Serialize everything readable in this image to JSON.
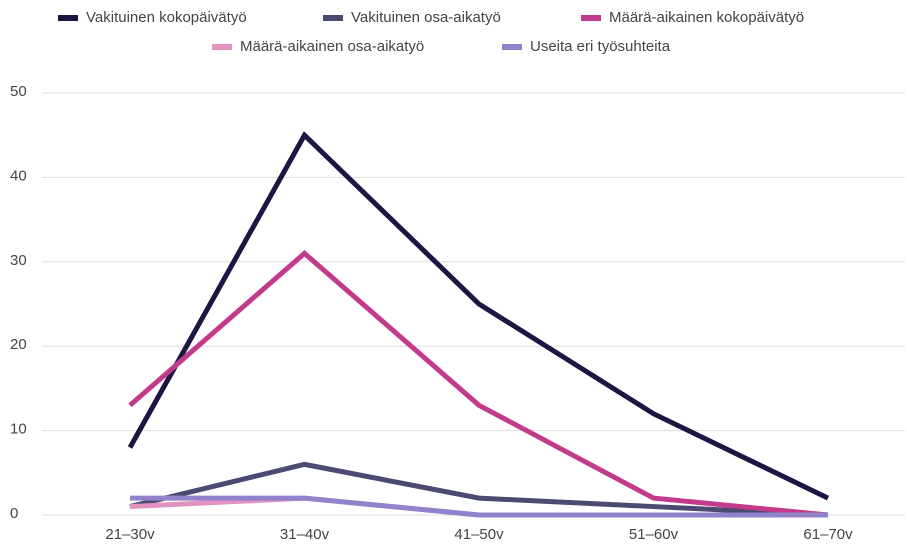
{
  "chart_data": {
    "type": "line",
    "categories": [
      "21–30v",
      "31–40v",
      "41–50v",
      "51–60v",
      "61–70v"
    ],
    "series": [
      {
        "name": "Vakituinen kokopäivätyö",
        "color": "#1b1642",
        "values": [
          8,
          45,
          25,
          12,
          2
        ]
      },
      {
        "name": "Vakituinen osa-aikatyö",
        "color": "#4b4a72",
        "values": [
          1,
          6,
          2,
          1,
          0
        ]
      },
      {
        "name": "Määrä-aikainen kokopäivätyö",
        "color": "#c23a8c",
        "values": [
          13,
          31,
          13,
          2,
          0
        ]
      },
      {
        "name": "Määrä-aikainen osa-aikatyö",
        "color": "#e391bf",
        "values": [
          1,
          2,
          0,
          0,
          0
        ]
      },
      {
        "name": "Useita eri työsuhteita",
        "color": "#9182cc",
        "values": [
          2,
          2,
          0,
          0,
          0
        ]
      }
    ],
    "ylim": [
      0,
      50
    ],
    "yticks": [
      0,
      10,
      20,
      30,
      40,
      50
    ],
    "grid": true,
    "legend": "top"
  }
}
